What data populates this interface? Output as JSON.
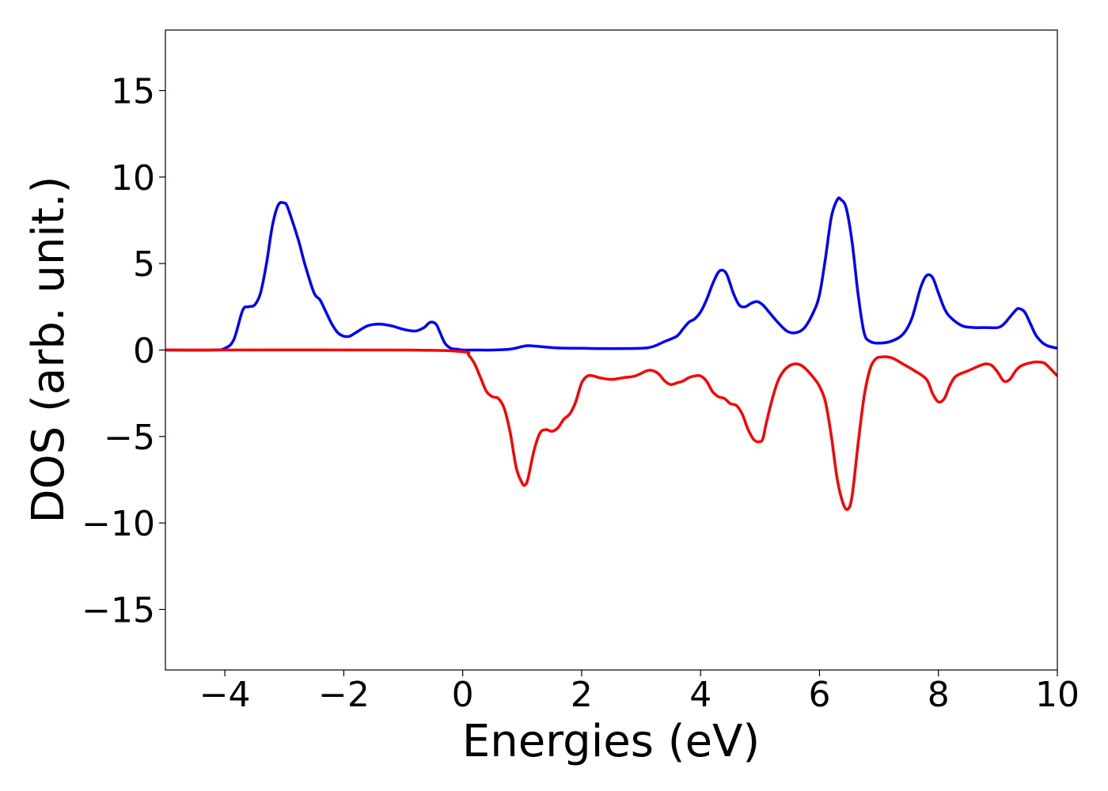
{
  "chart_data": {
    "type": "line",
    "title": "",
    "xlabel": "Energies (eV)",
    "ylabel": "DOS (arb. unit.)",
    "xlim": [
      -5,
      10
    ],
    "ylim": [
      -18.5,
      18.5
    ],
    "xticks": [
      -4,
      -2,
      0,
      2,
      4,
      6,
      8,
      10
    ],
    "xtick_labels": [
      "−4",
      "−2",
      "0",
      "2",
      "4",
      "6",
      "8",
      "10"
    ],
    "yticks": [
      -15,
      -10,
      -5,
      0,
      5,
      10,
      15
    ],
    "ytick_labels": [
      "−15",
      "−10",
      "−5",
      "0",
      "5",
      "10",
      "15"
    ],
    "grid": false,
    "legend": "none",
    "series": [
      {
        "color": "#0000ff",
        "x": [
          -5.0,
          -4.2,
          -4.0,
          -3.85,
          -3.7,
          -3.6,
          -3.5,
          -3.4,
          -3.3,
          -3.2,
          -3.1,
          -3.0,
          -2.95,
          -2.85,
          -2.75,
          -2.65,
          -2.5,
          -2.4,
          -2.3,
          -2.2,
          -2.1,
          -2.0,
          -1.9,
          -1.8,
          -1.6,
          -1.4,
          -1.2,
          -1.0,
          -0.8,
          -0.65,
          -0.55,
          -0.45,
          -0.38,
          -0.3,
          -0.2,
          -0.1,
          0.0,
          0.2,
          0.5,
          0.8,
          1.0,
          1.1,
          1.3,
          1.6,
          2.0,
          2.5,
          3.0,
          3.2,
          3.4,
          3.6,
          3.7,
          3.8,
          3.9,
          4.0,
          4.1,
          4.2,
          4.3,
          4.38,
          4.45,
          4.55,
          4.65,
          4.75,
          4.85,
          4.95,
          5.05,
          5.15,
          5.3,
          5.45,
          5.6,
          5.75,
          5.9,
          6.0,
          6.1,
          6.2,
          6.3,
          6.36,
          6.45,
          6.55,
          6.65,
          6.75,
          6.85,
          7.0,
          7.2,
          7.4,
          7.55,
          7.7,
          7.8,
          7.9,
          8.0,
          8.1,
          8.2,
          8.4,
          8.6,
          8.8,
          9.0,
          9.1,
          9.2,
          9.3,
          9.35,
          9.45,
          9.55,
          9.65,
          9.8,
          10.0
        ],
        "y": [
          0.0,
          0.0,
          0.1,
          0.6,
          2.3,
          2.5,
          2.6,
          3.3,
          5.0,
          7.2,
          8.4,
          8.5,
          8.3,
          7.3,
          6.2,
          4.9,
          3.3,
          2.9,
          2.2,
          1.5,
          1.0,
          0.8,
          0.8,
          1.0,
          1.4,
          1.5,
          1.4,
          1.2,
          1.1,
          1.3,
          1.6,
          1.5,
          1.0,
          0.4,
          0.1,
          0.05,
          0.0,
          0.0,
          0.0,
          0.05,
          0.2,
          0.25,
          0.2,
          0.12,
          0.1,
          0.08,
          0.1,
          0.2,
          0.5,
          0.8,
          1.2,
          1.6,
          1.8,
          2.2,
          2.9,
          3.8,
          4.5,
          4.6,
          4.3,
          3.3,
          2.6,
          2.5,
          2.7,
          2.8,
          2.6,
          2.2,
          1.6,
          1.1,
          1.0,
          1.3,
          2.2,
          3.2,
          5.3,
          7.7,
          8.7,
          8.7,
          8.2,
          6.2,
          3.2,
          1.0,
          0.5,
          0.4,
          0.5,
          0.9,
          1.8,
          3.6,
          4.3,
          4.2,
          3.3,
          2.4,
          1.9,
          1.4,
          1.3,
          1.3,
          1.3,
          1.5,
          1.9,
          2.3,
          2.4,
          2.2,
          1.5,
          0.8,
          0.3,
          0.1
        ]
      },
      {
        "color": "#ff0000",
        "x": [
          -5.0,
          -1.0,
          0.0,
          0.1,
          0.2,
          0.3,
          0.4,
          0.5,
          0.6,
          0.7,
          0.8,
          0.9,
          1.0,
          1.05,
          1.1,
          1.2,
          1.3,
          1.4,
          1.5,
          1.6,
          1.7,
          1.8,
          1.9,
          2.0,
          2.1,
          2.2,
          2.3,
          2.5,
          2.7,
          2.9,
          3.1,
          3.2,
          3.3,
          3.4,
          3.5,
          3.6,
          3.7,
          3.8,
          3.9,
          4.0,
          4.1,
          4.2,
          4.3,
          4.4,
          4.5,
          4.6,
          4.7,
          4.8,
          4.9,
          5.0,
          5.05,
          5.1,
          5.2,
          5.3,
          5.4,
          5.5,
          5.6,
          5.7,
          5.8,
          5.9,
          6.0,
          6.1,
          6.2,
          6.3,
          6.4,
          6.48,
          6.55,
          6.65,
          6.75,
          6.85,
          6.95,
          7.05,
          7.15,
          7.25,
          7.4,
          7.6,
          7.8,
          7.9,
          8.0,
          8.1,
          8.2,
          8.3,
          8.5,
          8.7,
          8.8,
          8.9,
          9.0,
          9.1,
          9.2,
          9.3,
          9.4,
          9.6,
          9.7,
          9.8,
          10.0
        ],
        "y": [
          0.0,
          0.0,
          -0.1,
          -0.3,
          -0.8,
          -1.6,
          -2.4,
          -2.7,
          -2.8,
          -3.4,
          -4.8,
          -6.8,
          -7.7,
          -7.8,
          -7.4,
          -5.8,
          -4.8,
          -4.6,
          -4.7,
          -4.5,
          -4.0,
          -3.7,
          -3.0,
          -1.9,
          -1.5,
          -1.5,
          -1.6,
          -1.7,
          -1.6,
          -1.5,
          -1.2,
          -1.2,
          -1.4,
          -1.8,
          -2.0,
          -1.9,
          -1.8,
          -1.6,
          -1.5,
          -1.5,
          -1.8,
          -2.4,
          -2.7,
          -2.8,
          -3.1,
          -3.2,
          -3.7,
          -4.6,
          -5.2,
          -5.3,
          -5.1,
          -4.3,
          -2.9,
          -1.8,
          -1.2,
          -0.9,
          -0.8,
          -0.9,
          -1.2,
          -1.6,
          -2.1,
          -3.0,
          -5.0,
          -7.5,
          -8.9,
          -9.2,
          -8.4,
          -5.4,
          -2.7,
          -1.1,
          -0.5,
          -0.4,
          -0.4,
          -0.5,
          -0.8,
          -1.2,
          -1.7,
          -2.5,
          -3.0,
          -2.8,
          -2.0,
          -1.5,
          -1.2,
          -0.9,
          -0.8,
          -0.9,
          -1.3,
          -1.8,
          -1.7,
          -1.2,
          -0.9,
          -0.7,
          -0.7,
          -0.8,
          -1.5
        ]
      }
    ]
  }
}
